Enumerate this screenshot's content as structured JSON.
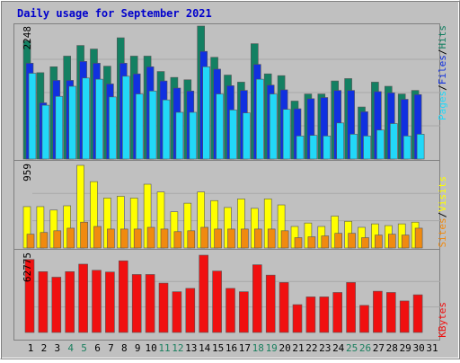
{
  "chart_data": [
    {
      "type": "bar",
      "title": "Daily usage for September 2021",
      "categories": [
        "1",
        "2",
        "3",
        "4",
        "5",
        "6",
        "7",
        "8",
        "9",
        "10",
        "11",
        "12",
        "13",
        "14",
        "15",
        "16",
        "17",
        "18",
        "19",
        "20",
        "21",
        "22",
        "23",
        "24",
        "25",
        "26",
        "27",
        "28",
        "29",
        "30",
        "31"
      ],
      "weekend_days": [
        "4",
        "5",
        "11",
        "12",
        "18",
        "19",
        "25",
        "26"
      ],
      "ymax_label": "2248",
      "ylim": [
        0,
        2248
      ],
      "series": [
        {
          "name": "Hits",
          "color": "#138062",
          "values": [
            2000,
            1460,
            1560,
            1740,
            1920,
            1860,
            1570,
            2050,
            1740,
            1740,
            1480,
            1380,
            1340,
            2248,
            1720,
            1420,
            1300,
            1950,
            1440,
            1410,
            980,
            1100,
            1100,
            1320,
            1360,
            880,
            1300,
            1230,
            1100,
            1160,
            0
          ]
        },
        {
          "name": "Files",
          "color": "#1030E0",
          "values": [
            1620,
            950,
            1330,
            1330,
            1650,
            1620,
            1270,
            1620,
            1440,
            1560,
            1320,
            1200,
            1150,
            1820,
            1520,
            1240,
            1160,
            1600,
            1250,
            1170,
            850,
            1020,
            1040,
            1160,
            1160,
            800,
            1140,
            1120,
            1010,
            1090,
            0
          ]
        },
        {
          "name": "Pages",
          "color": "#22D8F8",
          "values": [
            1450,
            910,
            1060,
            1230,
            1370,
            1350,
            1050,
            1400,
            1100,
            1150,
            1000,
            790,
            790,
            1560,
            1100,
            830,
            780,
            1350,
            1100,
            840,
            390,
            400,
            390,
            610,
            420,
            390,
            490,
            600,
            390,
            420,
            0
          ]
        }
      ],
      "legend": [
        "Pages",
        "Files",
        "Hits"
      ],
      "legend_placement": "right"
    },
    {
      "type": "bar",
      "categories": [
        "1",
        "2",
        "3",
        "4",
        "5",
        "6",
        "7",
        "8",
        "9",
        "10",
        "11",
        "12",
        "13",
        "14",
        "15",
        "16",
        "17",
        "18",
        "19",
        "20",
        "21",
        "22",
        "23",
        "24",
        "25",
        "26",
        "27",
        "28",
        "29",
        "30",
        "31"
      ],
      "ymax_label": "959",
      "ylim": [
        0,
        959
      ],
      "series": [
        {
          "name": "Visits",
          "color": "#FFFF00",
          "values": [
            480,
            480,
            440,
            490,
            959,
            770,
            580,
            600,
            580,
            740,
            650,
            420,
            520,
            650,
            550,
            470,
            570,
            460,
            570,
            500,
            250,
            290,
            250,
            370,
            310,
            240,
            280,
            260,
            280,
            300,
            0
          ]
        },
        {
          "name": "Sites",
          "color": "#F08A10",
          "values": [
            160,
            180,
            200,
            230,
            300,
            250,
            220,
            220,
            220,
            240,
            220,
            190,
            200,
            240,
            220,
            220,
            220,
            220,
            220,
            200,
            120,
            130,
            140,
            170,
            170,
            120,
            150,
            160,
            150,
            230,
            0
          ]
        }
      ],
      "legend": [
        "Sites",
        "Visits"
      ],
      "legend_placement": "right"
    },
    {
      "type": "bar",
      "categories": [
        "1",
        "2",
        "3",
        "4",
        "5",
        "6",
        "7",
        "8",
        "9",
        "10",
        "11",
        "12",
        "13",
        "14",
        "15",
        "16",
        "17",
        "18",
        "19",
        "20",
        "21",
        "22",
        "23",
        "24",
        "25",
        "26",
        "27",
        "28",
        "29",
        "30",
        "31"
      ],
      "ymax_label": "62775",
      "ylim": [
        0,
        62775
      ],
      "series": [
        {
          "name": "KBytes",
          "color": "#F01010",
          "values": [
            59300,
            49400,
            44900,
            49400,
            55500,
            50500,
            49100,
            58200,
            47100,
            47100,
            40100,
            33100,
            35800,
            62775,
            49900,
            35800,
            33100,
            55000,
            46600,
            40600,
            22600,
            28900,
            28900,
            32500,
            40600,
            22000,
            33500,
            32500,
            25600,
            30600,
            0
          ]
        }
      ],
      "legend": [
        "KBytes"
      ],
      "legend_placement": "right"
    }
  ]
}
